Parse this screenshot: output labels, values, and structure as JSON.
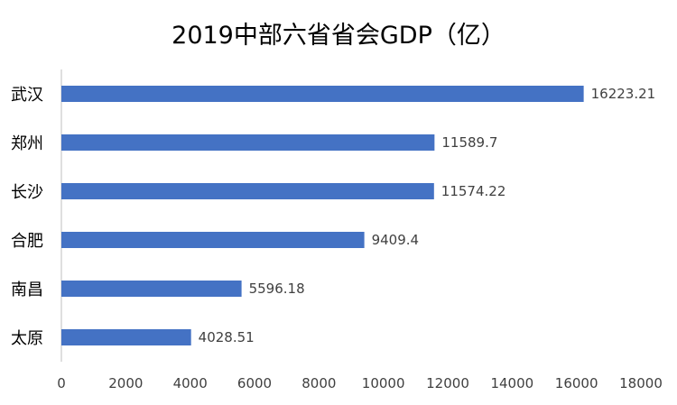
{
  "chart_data": {
    "type": "bar",
    "orientation": "horizontal",
    "title": "2019中部六省省会GDP（亿）",
    "categories": [
      "武汉",
      "郑州",
      "长沙",
      "合肥",
      "南昌",
      "太原"
    ],
    "values": [
      16223.21,
      11589.7,
      11574.22,
      9409.4,
      5596.18,
      4028.51
    ],
    "value_labels": [
      "16223.21",
      "11589.7",
      "11574.22",
      "9409.4",
      "5596.18",
      "4028.51"
    ],
    "xlim": [
      0,
      18000
    ],
    "xticks": [
      "0",
      "2000",
      "4000",
      "6000",
      "8000",
      "10000",
      "12000",
      "14000",
      "16000",
      "18000"
    ],
    "xlabel": "",
    "ylabel": "",
    "bar_color": "#4472C4",
    "grid": false,
    "legend": "none"
  }
}
